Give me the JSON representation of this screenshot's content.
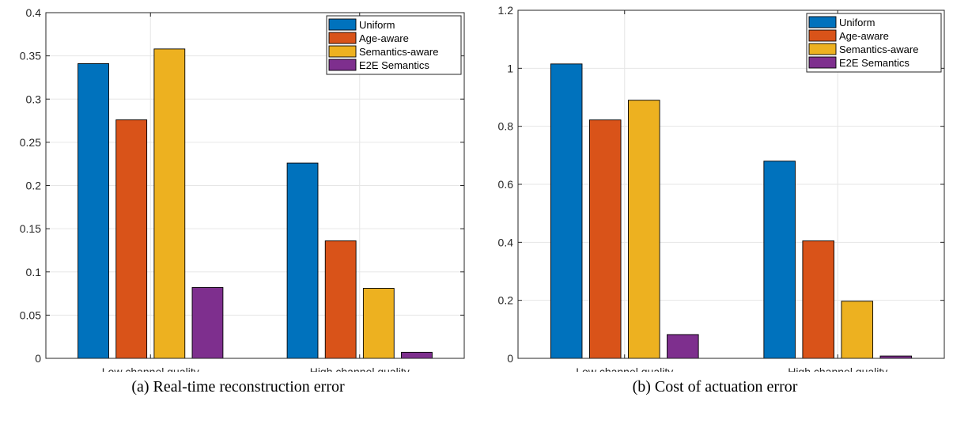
{
  "captions": [
    "(a) Real-time reconstruction error",
    "(b) Cost of actuation error"
  ],
  "colors": {
    "Uniform": "#0072BD",
    "Age-aware": "#D95319",
    "Semantics-aware": "#EDB120",
    "E2E Semantics": "#7E2F8E"
  },
  "chart_data": [
    {
      "type": "bar",
      "title": "",
      "xlabel": "",
      "ylabel": "",
      "categories": [
        "Low channel quality",
        "High channel quality"
      ],
      "series": [
        {
          "name": "Uniform",
          "values": [
            0.341,
            0.226
          ]
        },
        {
          "name": "Age-aware",
          "values": [
            0.276,
            0.136
          ]
        },
        {
          "name": "Semantics-aware",
          "values": [
            0.358,
            0.081
          ]
        },
        {
          "name": "E2E Semantics",
          "values": [
            0.082,
            0.007
          ]
        }
      ],
      "ylim": [
        0,
        0.4
      ],
      "yticks": [
        0,
        0.05,
        0.1,
        0.15,
        0.2,
        0.25,
        0.3,
        0.35,
        0.4
      ],
      "ytick_labels": [
        "0",
        "0.05",
        "0.1",
        "0.15",
        "0.2",
        "0.25",
        "0.3",
        "0.35",
        "0.4"
      ],
      "grid": true,
      "legend": "top-right"
    },
    {
      "type": "bar",
      "title": "",
      "xlabel": "",
      "ylabel": "",
      "categories": [
        "Low channel quality",
        "High channel quality"
      ],
      "series": [
        {
          "name": "Uniform",
          "values": [
            1.015,
            0.68
          ]
        },
        {
          "name": "Age-aware",
          "values": [
            0.822,
            0.405
          ]
        },
        {
          "name": "Semantics-aware",
          "values": [
            0.89,
            0.197
          ]
        },
        {
          "name": "E2E Semantics",
          "values": [
            0.082,
            0.008
          ]
        }
      ],
      "ylim": [
        0,
        1.2
      ],
      "yticks": [
        0,
        0.2,
        0.4,
        0.6,
        0.8,
        1,
        1.2
      ],
      "ytick_labels": [
        "0",
        "0.2",
        "0.4",
        "0.6",
        "0.8",
        "1",
        "1.2"
      ],
      "grid": true,
      "legend": "top-right"
    }
  ]
}
